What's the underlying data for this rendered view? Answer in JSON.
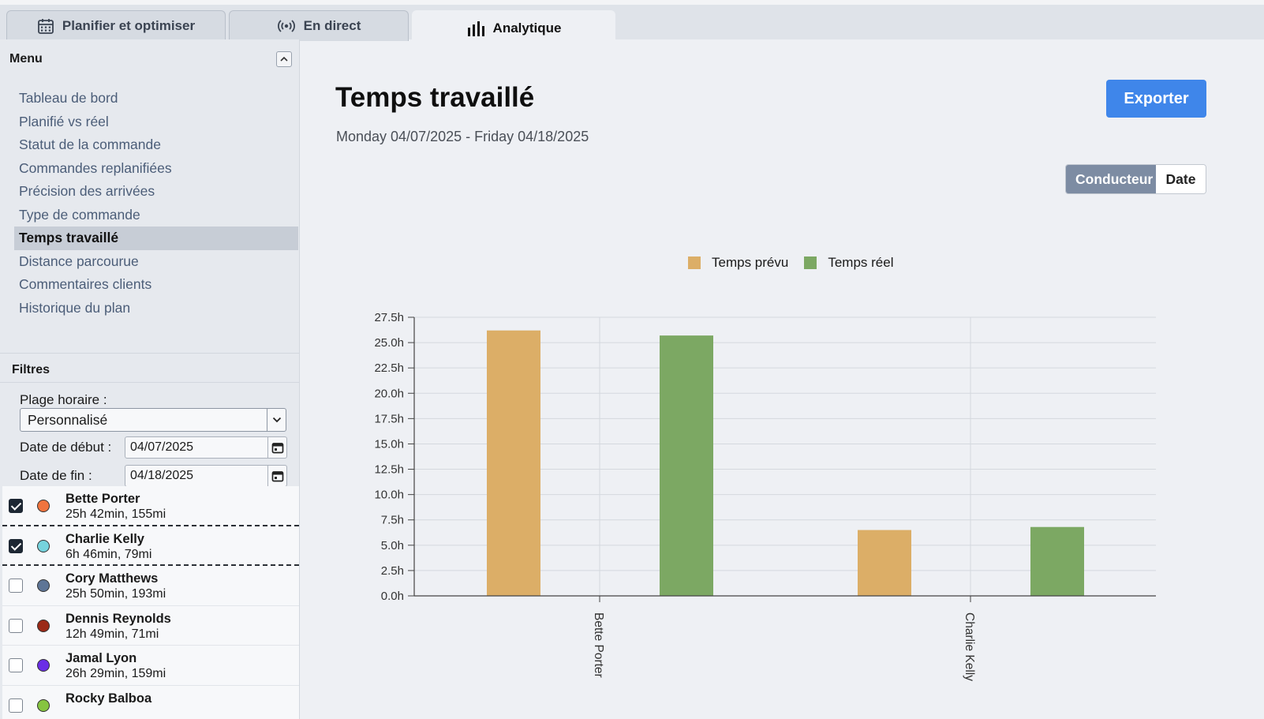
{
  "tabs": [
    {
      "label": "Planifier et optimiser",
      "icon": "calendar-icon",
      "active": false
    },
    {
      "label": "En direct",
      "icon": "broadcast-icon",
      "active": false
    },
    {
      "label": "Analytique",
      "icon": "bar-chart-icon",
      "active": true
    }
  ],
  "sidebar": {
    "menu_title": "Menu",
    "items": [
      {
        "label": "Tableau de bord",
        "active": false
      },
      {
        "label": "Planifié vs réel",
        "active": false
      },
      {
        "label": "Statut de la commande",
        "active": false
      },
      {
        "label": "Commandes replanifiées",
        "active": false
      },
      {
        "label": "Précision des arrivées",
        "active": false
      },
      {
        "label": "Type de commande",
        "active": false
      },
      {
        "label": "Temps travaillé",
        "active": true
      },
      {
        "label": "Distance parcourue",
        "active": false
      },
      {
        "label": "Commentaires clients",
        "active": false
      },
      {
        "label": "Historique du plan",
        "active": false
      }
    ]
  },
  "filters": {
    "title": "Filtres",
    "range_label": "Plage horaire :",
    "range_value": "Personnalisé",
    "start_label": "Date de début :",
    "start_value": "04/07/2025",
    "end_label": "Date de fin :",
    "end_value": "04/18/2025"
  },
  "drivers": [
    {
      "name": "Bette Porter",
      "stats": "25h 42min, 155mi",
      "checked": true,
      "color": "#f0743e"
    },
    {
      "name": "Charlie Kelly",
      "stats": "6h 46min, 79mi",
      "checked": true,
      "color": "#76d3dd"
    },
    {
      "name": "Cory Matthews",
      "stats": "25h 50min, 193mi",
      "checked": false,
      "color": "#5e7596"
    },
    {
      "name": "Dennis Reynolds",
      "stats": "12h 49min, 71mi",
      "checked": false,
      "color": "#9b2a18"
    },
    {
      "name": "Jamal Lyon",
      "stats": "26h 29min, 159mi",
      "checked": false,
      "color": "#6a2ee6"
    },
    {
      "name": "Rocky Balboa",
      "stats": "",
      "checked": false,
      "color": "#86c441"
    }
  ],
  "main": {
    "title": "Temps travaillé",
    "date_range": "Monday 04/07/2025 - Friday 04/18/2025",
    "export_label": "Exporter",
    "toggle_driver": "Conducteur",
    "toggle_date": "Date"
  },
  "colors": {
    "planned": "#dcae67",
    "actual": "#7ca863",
    "accent": "#3f86ea"
  },
  "chart_data": {
    "type": "bar",
    "categories": [
      "Bette Porter",
      "Charlie Kelly"
    ],
    "series": [
      {
        "name": "Temps prévu",
        "values": [
          26.2,
          6.5
        ]
      },
      {
        "name": "Temps réel",
        "values": [
          25.7,
          6.8
        ]
      }
    ],
    "ylim": [
      0,
      27.5
    ],
    "yticks": [
      "0.0h",
      "2.5h",
      "5.0h",
      "7.5h",
      "10.0h",
      "12.5h",
      "15.0h",
      "17.5h",
      "20.0h",
      "22.5h",
      "25.0h",
      "27.5h"
    ],
    "grid": true,
    "legend": "top"
  }
}
